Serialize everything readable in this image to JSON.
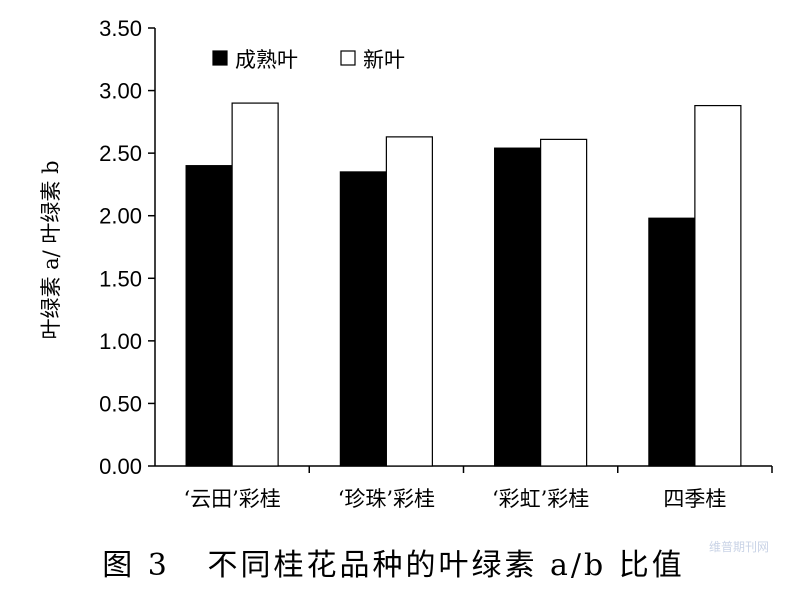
{
  "chart_data": {
    "type": "bar",
    "title": "",
    "ylabel": "叶绿素 a/ 叶绿素 b",
    "xlabel": "",
    "categories": [
      "‘云田’彩桂",
      "‘珍珠’彩桂",
      "‘彩虹’彩桂",
      "四季桂"
    ],
    "series": [
      {
        "name": "成熟叶",
        "color": "#000000",
        "values": [
          2.4,
          2.35,
          2.54,
          1.98
        ]
      },
      {
        "name": "新叶",
        "color": "#ffffff",
        "values": [
          2.9,
          2.63,
          2.61,
          2.88
        ]
      }
    ],
    "ylim": [
      0,
      3.5
    ],
    "yticks": [
      "0.00",
      "0.50",
      "1.00",
      "1.50",
      "2.00",
      "2.50",
      "3.00",
      "3.50"
    ],
    "grid": false,
    "legend_position": "top-left"
  },
  "caption": "图 3   不同桂花品种的叶绿素 a/b 比值",
  "watermark": "维普期刊网"
}
